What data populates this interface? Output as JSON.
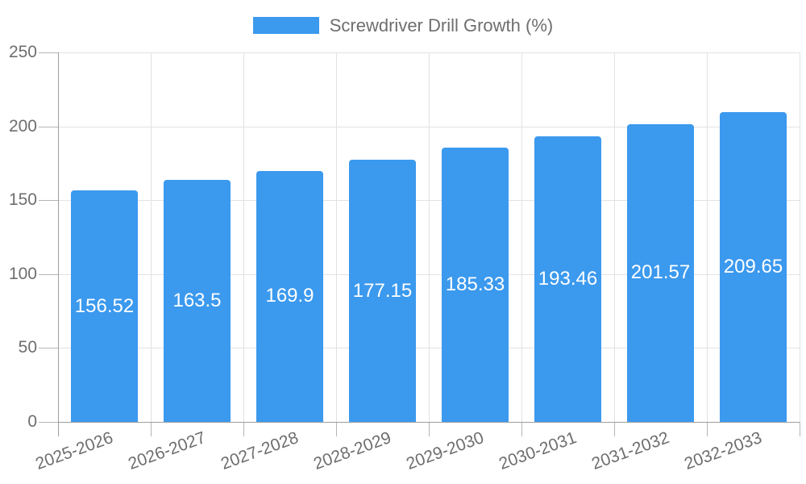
{
  "legend": {
    "label": "Screwdriver Drill Growth (%)"
  },
  "colors": {
    "bar": "#3B99EE",
    "grid": "#e2e2e2",
    "tick": "#b5b5b5",
    "axis": "#9e9e9e",
    "text": "#6e6e6e",
    "value_text": "#ffffff",
    "background": "#ffffff"
  },
  "chart_data": {
    "type": "bar",
    "title": "Screwdriver Drill Growth (%)",
    "categories": [
      "2025-2026",
      "2026-2027",
      "2027-2028",
      "2028-2029",
      "2029-2030",
      "2030-2031",
      "2031-2032",
      "2032-2033"
    ],
    "values": [
      156.52,
      163.5,
      169.9,
      177.15,
      185.33,
      193.46,
      201.57,
      209.65
    ],
    "value_labels": [
      "156.52",
      "163.5",
      "169.9",
      "177.15",
      "185.33",
      "193.46",
      "201.57",
      "209.65"
    ],
    "xlabel": "",
    "ylabel": "",
    "ylim": [
      0,
      250
    ],
    "yticks": [
      0,
      50,
      100,
      150,
      200,
      250
    ],
    "grid": true,
    "legend_position": "top",
    "x_label_rotation_deg": -20
  }
}
